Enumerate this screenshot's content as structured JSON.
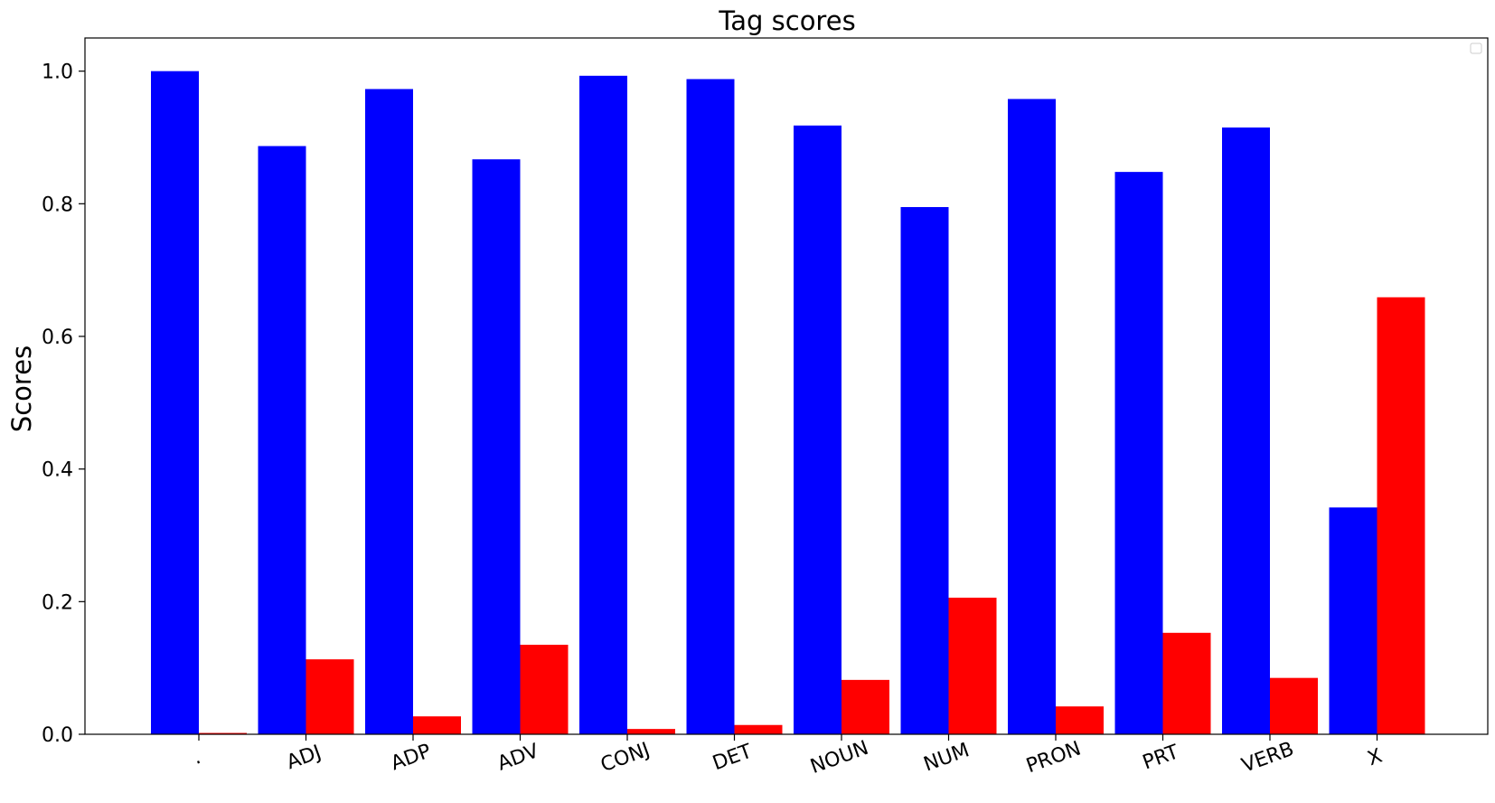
{
  "chart_data": {
    "type": "bar",
    "title": "Tag scores",
    "xlabel": "",
    "ylabel": "Scores",
    "ylim": [
      0,
      1.05
    ],
    "yticks": [
      0.0,
      0.2,
      0.4,
      0.6,
      0.8,
      1.0
    ],
    "ytick_labels": [
      "0.0",
      "0.2",
      "0.4",
      "0.6",
      "0.8",
      "1.0"
    ],
    "grid": false,
    "legend": "top-right (empty)",
    "categories": [
      ".",
      "ADJ",
      "ADP",
      "ADV",
      "CONJ",
      "DET",
      "NOUN",
      "NUM",
      "PRON",
      "PRT",
      "VERB",
      "X"
    ],
    "series": [
      {
        "name": "blue",
        "color": "#0000ff",
        "values": [
          1.0,
          0.887,
          0.973,
          0.867,
          0.993,
          0.988,
          0.918,
          0.795,
          0.958,
          0.848,
          0.915,
          0.342
        ]
      },
      {
        "name": "red",
        "color": "#ff0000",
        "values": [
          0.002,
          0.113,
          0.027,
          0.135,
          0.008,
          0.014,
          0.082,
          0.206,
          0.042,
          0.153,
          0.085,
          0.659
        ]
      }
    ]
  }
}
